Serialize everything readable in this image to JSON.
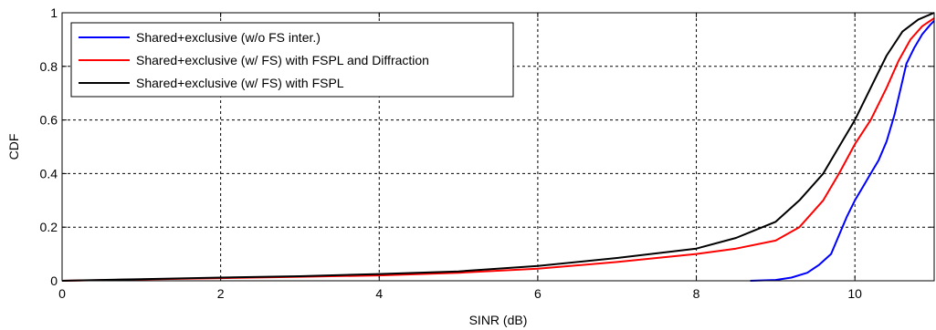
{
  "chart_data": {
    "type": "line",
    "title": "",
    "xlabel": "SINR (dB)",
    "ylabel": "CDF",
    "xlim": [
      0,
      11
    ],
    "ylim": [
      0,
      1
    ],
    "xticks": [
      0,
      2,
      4,
      6,
      8,
      10
    ],
    "yticks": [
      0,
      0.2,
      0.4,
      0.6,
      0.8,
      1
    ],
    "xtick_labels": [
      "0",
      "2",
      "4",
      "6",
      "8",
      "10"
    ],
    "ytick_labels": [
      "0",
      "0.2",
      "0.4",
      "0.6",
      "0.8",
      "1"
    ],
    "grid": true,
    "legend_position": "top-left",
    "series": [
      {
        "name": "Shared+exclusive (w/o FS inter.)",
        "color": "#0000ff",
        "points": [
          [
            8.68,
            0.0
          ],
          [
            9.0,
            0.003
          ],
          [
            9.2,
            0.012
          ],
          [
            9.4,
            0.03
          ],
          [
            9.55,
            0.06
          ],
          [
            9.7,
            0.1
          ],
          [
            9.8,
            0.17
          ],
          [
            9.9,
            0.24
          ],
          [
            10.0,
            0.3
          ],
          [
            10.1,
            0.35
          ],
          [
            10.2,
            0.4
          ],
          [
            10.3,
            0.45
          ],
          [
            10.4,
            0.52
          ],
          [
            10.5,
            0.62
          ],
          [
            10.58,
            0.72
          ],
          [
            10.65,
            0.81
          ],
          [
            10.75,
            0.87
          ],
          [
            10.85,
            0.92
          ],
          [
            10.95,
            0.955
          ],
          [
            11.0,
            0.97
          ]
        ]
      },
      {
        "name": "Shared+exclusive (w/ FS) with FSPL and Diffraction",
        "color": "#ff0000",
        "points": [
          [
            0.0,
            0.0
          ],
          [
            1.0,
            0.005
          ],
          [
            2.0,
            0.01
          ],
          [
            3.0,
            0.015
          ],
          [
            4.0,
            0.02
          ],
          [
            5.0,
            0.03
          ],
          [
            6.0,
            0.045
          ],
          [
            7.0,
            0.07
          ],
          [
            8.0,
            0.1
          ],
          [
            8.5,
            0.12
          ],
          [
            9.0,
            0.15
          ],
          [
            9.3,
            0.2
          ],
          [
            9.6,
            0.3
          ],
          [
            9.8,
            0.4
          ],
          [
            10.0,
            0.51
          ],
          [
            10.2,
            0.6
          ],
          [
            10.4,
            0.72
          ],
          [
            10.55,
            0.82
          ],
          [
            10.7,
            0.9
          ],
          [
            10.85,
            0.95
          ],
          [
            11.0,
            0.98
          ]
        ]
      },
      {
        "name": "Shared+exclusive (w/ FS) with FSPL",
        "color": "#000000",
        "points": [
          [
            0.0,
            0.0
          ],
          [
            1.0,
            0.006
          ],
          [
            2.0,
            0.012
          ],
          [
            3.0,
            0.017
          ],
          [
            4.0,
            0.025
          ],
          [
            5.0,
            0.035
          ],
          [
            6.0,
            0.055
          ],
          [
            7.0,
            0.085
          ],
          [
            8.0,
            0.12
          ],
          [
            8.5,
            0.16
          ],
          [
            9.0,
            0.22
          ],
          [
            9.3,
            0.3
          ],
          [
            9.6,
            0.4
          ],
          [
            9.8,
            0.5
          ],
          [
            10.0,
            0.6
          ],
          [
            10.2,
            0.72
          ],
          [
            10.4,
            0.84
          ],
          [
            10.6,
            0.93
          ],
          [
            10.8,
            0.975
          ],
          [
            11.0,
            1.0
          ]
        ]
      }
    ]
  }
}
